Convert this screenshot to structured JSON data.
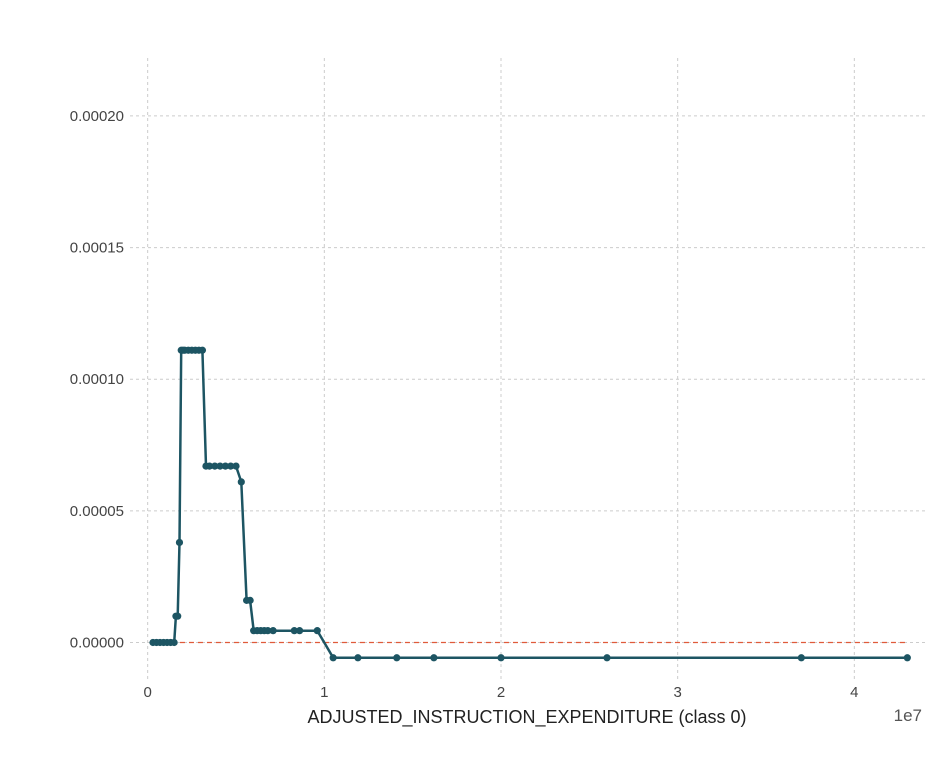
{
  "chart_data": {
    "type": "line",
    "title": "",
    "xlabel": "ADJUSTED_INSTRUCTION_EXPENDITURE (class 0)",
    "ylabel": "",
    "x_offset_label": "1e7",
    "xlim": [
      -1000000,
      44000000
    ],
    "ylim": [
      -1.5e-05,
      0.000222
    ],
    "x_ticks": [
      0,
      10000000,
      20000000,
      30000000,
      40000000
    ],
    "x_tick_labels": [
      "0",
      "1",
      "2",
      "3",
      "4"
    ],
    "y_ticks": [
      0,
      5e-05,
      0.0001,
      0.00015,
      0.0002
    ],
    "y_tick_labels": [
      "0.00000",
      "0.00005",
      "0.00010",
      "0.00015",
      "0.00020"
    ],
    "grid": true,
    "colors": {
      "line": "#1d5563",
      "baseline": "#e05a3a",
      "grid": "#cccccc"
    },
    "baseline": {
      "y": 0,
      "x_start": 300000,
      "x_end": 43000000
    },
    "series": [
      {
        "x": [
          300000,
          500000,
          700000,
          900000,
          1100000,
          1300000,
          1500000,
          1600000,
          1700000,
          1800000,
          1900000,
          2000000,
          2100000,
          2300000,
          2500000,
          2700000,
          2900000,
          3100000,
          3300000,
          3500000,
          3800000,
          4100000,
          4400000,
          4700000,
          5000000,
          5300000,
          5600000,
          5800000,
          6000000,
          6200000,
          6400000,
          6600000,
          6800000,
          7100000,
          8300000,
          8600000,
          9600000,
          10500000,
          11900000,
          14100000,
          16200000,
          20000000,
          26000000,
          37000000,
          43000000
        ],
        "y": [
          0,
          0,
          0,
          0,
          0,
          0,
          0,
          1e-05,
          1e-05,
          3.8e-05,
          0.000111,
          0.000111,
          0.000111,
          0.000111,
          0.000111,
          0.000111,
          0.000111,
          0.000111,
          6.7e-05,
          6.7e-05,
          6.7e-05,
          6.7e-05,
          6.7e-05,
          6.7e-05,
          6.7e-05,
          6.1e-05,
          1.6e-05,
          1.6e-05,
          4.5e-06,
          4.5e-06,
          4.5e-06,
          4.5e-06,
          4.5e-06,
          4.5e-06,
          4.5e-06,
          4.5e-06,
          4.5e-06,
          -5.8e-06,
          -5.8e-06,
          -5.8e-06,
          -5.8e-06,
          -5.8e-06,
          -5.8e-06,
          -5.8e-06,
          -5.8e-06
        ]
      }
    ]
  }
}
